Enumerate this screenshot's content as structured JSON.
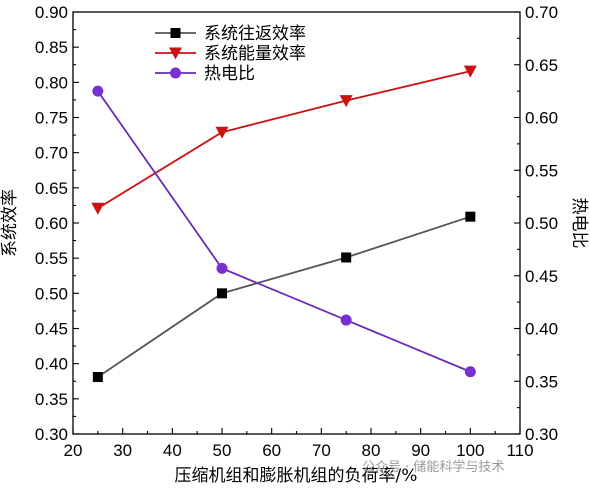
{
  "chart_data": {
    "type": "line",
    "x": [
      25,
      50,
      75,
      100
    ],
    "xlabel": "压缩机组和膨胀机组的负荷率/%",
    "ylabel_left": "系统效率",
    "ylabel_right": "热电比",
    "xlim": [
      20,
      110
    ],
    "xticks": [
      "20",
      "30",
      "40",
      "50",
      "60",
      "70",
      "80",
      "90",
      "100",
      "110"
    ],
    "ylim_left": [
      0.3,
      0.9
    ],
    "yticks_left": [
      "0.30",
      "0.35",
      "0.40",
      "0.45",
      "0.50",
      "0.55",
      "0.60",
      "0.65",
      "0.70",
      "0.75",
      "0.80",
      "0.85",
      "0.90"
    ],
    "ylim_right": [
      0.3,
      0.7
    ],
    "yticks_right": [
      "0.30",
      "0.35",
      "0.40",
      "0.45",
      "0.50",
      "0.55",
      "0.60",
      "0.65",
      "0.70"
    ],
    "legend_position": "top-left",
    "series": [
      {
        "name": "系统往返效率",
        "axis": "left",
        "marker": "square",
        "color": "#555555",
        "marker_color": "#000000",
        "values": [
          0.381,
          0.5,
          0.551,
          0.609
        ]
      },
      {
        "name": "系统能量效率",
        "axis": "left",
        "marker": "triangle-down",
        "color": "#cc1111",
        "marker_color": "#cc1111",
        "values": [
          0.621,
          0.729,
          0.774,
          0.816
        ]
      },
      {
        "name": "热电比",
        "axis": "right",
        "marker": "circle",
        "color": "#6a2bb8",
        "marker_color": "#7a2fd0",
        "values": [
          0.625,
          0.457,
          0.408,
          0.359
        ]
      }
    ]
  },
  "watermark": {
    "text": "公众号 · 储能科学与技术"
  }
}
